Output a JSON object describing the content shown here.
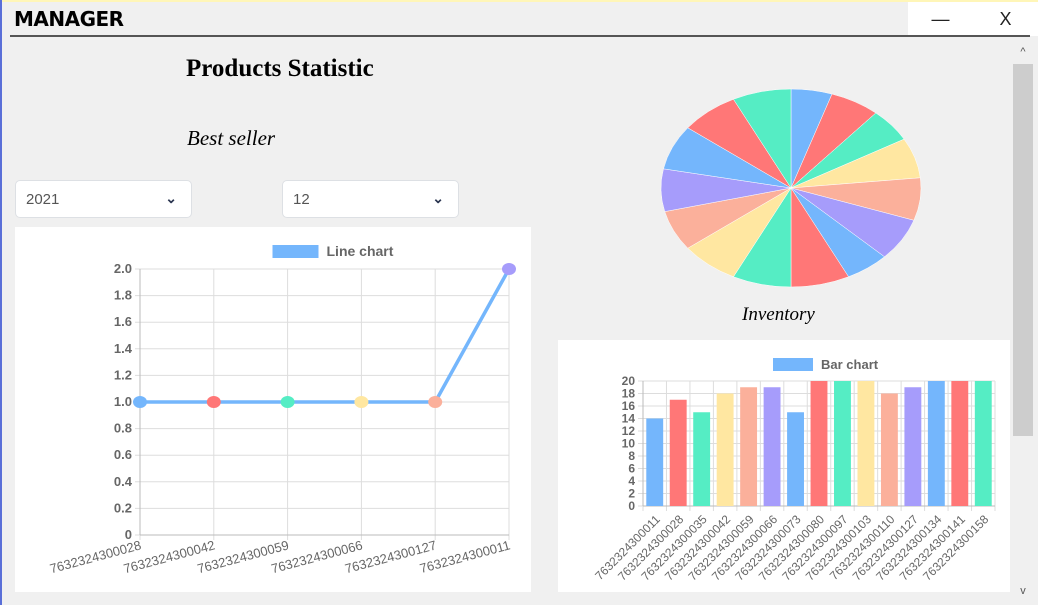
{
  "window": {
    "title": "MANAGER",
    "minimize": "—",
    "close": "X"
  },
  "page": {
    "title": "Products Statistic",
    "best_seller": "Best seller",
    "inventory": "Inventory"
  },
  "filters": {
    "year": "2021",
    "month": "12"
  },
  "scrollbar": {
    "up": "^",
    "down": "v"
  },
  "palette": [
    "#74b6fc",
    "#ff7777",
    "#55edc4",
    "#ffe7a1",
    "#fbb09b",
    "#a69cfb"
  ],
  "chart_data": [
    {
      "type": "line",
      "legend": "Line chart",
      "legend_color": "#74b6fc",
      "categories": [
        "7632324300028",
        "7632324300042",
        "7632324300059",
        "7632324300066",
        "7632324300127",
        "7632324300011"
      ],
      "values": [
        1,
        1,
        1,
        1,
        1,
        2
      ],
      "ylim": [
        0,
        2
      ],
      "yticks": [
        "0",
        "0.2",
        "0.4",
        "0.6",
        "0.8",
        "1.0",
        "1.2",
        "1.4",
        "1.6",
        "1.8",
        "2.0"
      ],
      "grid": true,
      "legend_position": "top"
    },
    {
      "type": "pie",
      "title": "Inventory",
      "values": [
        14,
        17,
        15,
        18,
        19,
        19,
        15,
        20,
        20,
        20,
        18,
        19,
        20,
        20,
        20
      ]
    },
    {
      "type": "bar",
      "legend": "Bar chart",
      "legend_color": "#74b6fc",
      "categories": [
        "7632324300011",
        "7632324300028",
        "7632324300035",
        "7632324300042",
        "7632324300059",
        "7632324300066",
        "7632324300073",
        "7632324300080",
        "7632324300097",
        "7632324300103",
        "7632324300110",
        "7632324300127",
        "7632324300134",
        "7632324300141",
        "7632324300158"
      ],
      "values": [
        14,
        17,
        15,
        18,
        19,
        19,
        15,
        20,
        20,
        20,
        18,
        19,
        20,
        20,
        20
      ],
      "ylim": [
        0,
        20
      ],
      "yticks": [
        "0",
        "2",
        "4",
        "6",
        "8",
        "10",
        "12",
        "14",
        "16",
        "18",
        "20"
      ],
      "grid": true,
      "legend_position": "top"
    }
  ]
}
